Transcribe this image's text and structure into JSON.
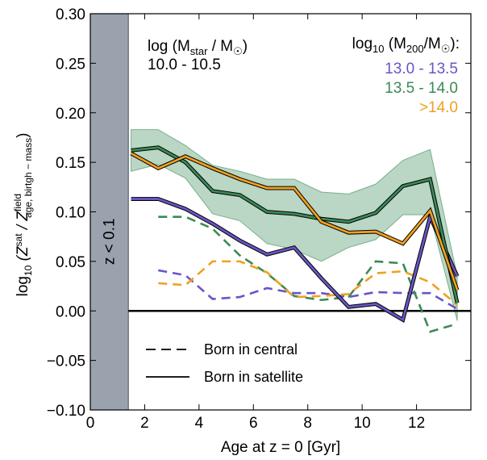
{
  "chart_data": {
    "type": "line",
    "xlabel": "Age at z = 0 [Gyr]",
    "ylabel": {
      "prefix": "log",
      "prefix_sub": "10",
      "open": " (Z",
      "num_sup": "sat",
      "slash": " / Z",
      "den_sup": "field",
      "den_sub": "age, birtgh − mass",
      "close": ")"
    },
    "xlim": [
      0,
      14
    ],
    "ylim": [
      -0.1,
      0.3
    ],
    "xticks": [
      "0",
      "2",
      "4",
      "6",
      "8",
      "10",
      "12"
    ],
    "yticks": [
      "−0.10",
      "−0.05",
      "0.00",
      "0.05",
      "0.10",
      "0.15",
      "0.20",
      "0.25",
      "0.30"
    ],
    "shaded_region": {
      "x": [
        0,
        1.4
      ],
      "label": "z < 0.1",
      "color": "#9aa3ad"
    },
    "stellar_mass_bin": {
      "title_prefix": "log (M",
      "title_sub": "star",
      "title_mid": " / M",
      "title_end": ")",
      "range": "10.0 - 10.5"
    },
    "halo_legend": {
      "title_prefix": "log",
      "title_sub1": "10",
      "title_mid": " (M",
      "title_sub2": "200",
      "title_end": "/M",
      "title_tail": "):"
    },
    "line_legend": [
      {
        "label": "Born in central",
        "style": "dashed"
      },
      {
        "label": "Born in satellite",
        "style": "solid"
      }
    ],
    "series": [
      {
        "name": "13.0 - 13.5",
        "color": "#6a55c5",
        "style": "solid",
        "x": [
          1.5,
          2.5,
          3.5,
          4.5,
          5.5,
          6.5,
          7.5,
          8.5,
          9.5,
          10.5,
          11.5,
          12.5,
          13.5
        ],
        "y": [
          0.113,
          0.113,
          0.103,
          0.088,
          0.071,
          0.057,
          0.064,
          0.033,
          0.004,
          0.007,
          -0.009,
          0.095,
          0.035
        ]
      },
      {
        "name": "13.5 - 14.0",
        "color": "#3a8a55",
        "style": "solid",
        "x": [
          1.5,
          2.5,
          3.5,
          4.5,
          5.5,
          6.5,
          7.5,
          8.5,
          9.5,
          10.5,
          11.5,
          12.5,
          13.5
        ],
        "y": [
          0.162,
          0.165,
          0.15,
          0.121,
          0.117,
          0.1,
          0.098,
          0.093,
          0.09,
          0.099,
          0.126,
          0.133,
          0.008
        ],
        "band_upper": [
          0.183,
          0.183,
          0.167,
          0.147,
          0.141,
          0.133,
          0.133,
          0.12,
          0.118,
          0.128,
          0.152,
          0.163,
          0.035
        ],
        "band_lower": [
          0.141,
          0.148,
          0.134,
          0.098,
          0.091,
          0.068,
          0.062,
          0.05,
          0.064,
          0.072,
          0.097,
          0.097,
          -0.01
        ]
      },
      {
        "name": ">14.0",
        "color": "#f0a020",
        "style": "solid",
        "x": [
          1.5,
          2.5,
          3.5,
          4.5,
          5.5,
          6.5,
          7.5,
          8.5,
          9.5,
          10.5,
          11.5,
          12.5,
          13.5
        ],
        "y": [
          0.159,
          0.144,
          0.156,
          0.144,
          0.133,
          0.124,
          0.124,
          0.09,
          0.079,
          0.08,
          0.068,
          0.101,
          0.021
        ]
      },
      {
        "name": "13.0 - 13.5",
        "color": "#6a55c5",
        "style": "dashed",
        "x": [
          2.5,
          3.5,
          4.5,
          5.5,
          6.5,
          7.5,
          8.5,
          9.5,
          10.5,
          11.5,
          12.5,
          13.5
        ],
        "y": [
          0.041,
          0.036,
          0.012,
          0.014,
          0.023,
          0.018,
          0.018,
          0.014,
          0.019,
          0.018,
          0.018,
          0.002
        ]
      },
      {
        "name": "13.5 - 14.0",
        "color": "#3a8a55",
        "style": "dashed",
        "x": [
          2.5,
          3.5,
          4.5,
          5.5,
          6.5,
          7.5,
          8.5,
          9.5,
          10.5,
          11.5,
          12.5,
          13.5
        ],
        "y": [
          0.095,
          0.095,
          0.083,
          0.056,
          0.038,
          0.015,
          0.011,
          0.014,
          0.05,
          0.048,
          -0.021,
          -0.013
        ]
      },
      {
        "name": ">14.0",
        "color": "#f0a020",
        "style": "dashed",
        "x": [
          2.5,
          3.5,
          4.5,
          5.5,
          6.5,
          7.5,
          8.5,
          9.5,
          10.5,
          11.5,
          12.5,
          13.5
        ],
        "y": [
          0.028,
          0.026,
          0.05,
          0.05,
          0.039,
          0.014,
          0.015,
          0.017,
          0.038,
          0.04,
          0.029,
          0.006
        ]
      }
    ]
  }
}
